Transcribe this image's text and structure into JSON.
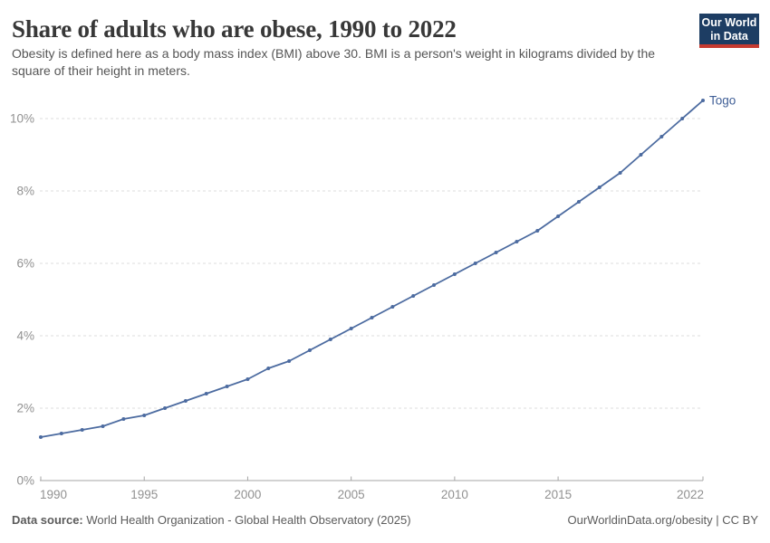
{
  "header": {
    "title": "Share of adults who are obese, 1990 to 2022",
    "subtitle": "Obesity is defined here as a body mass index (BMI) above 30. BMI is a person's weight in kilograms divided by the square of their height in meters.",
    "logo_line1": "Our World",
    "logo_line2": "in Data"
  },
  "chart_data": {
    "type": "line",
    "title": "Share of adults who are obese, 1990 to 2022",
    "xlabel": "",
    "ylabel": "",
    "xlim": [
      1990,
      2022
    ],
    "ylim": [
      0,
      10
    ],
    "grid": "horizontal dashed gridlines at 2% steps",
    "legend": "entity label at end of line",
    "xticks": [
      1990,
      1995,
      2000,
      2005,
      2010,
      2015,
      2022
    ],
    "yticks": [
      0,
      2,
      4,
      6,
      8,
      10
    ],
    "ytick_labels": [
      "0%",
      "2%",
      "4%",
      "6%",
      "8%",
      "10%"
    ],
    "series": [
      {
        "name": "Togo",
        "color": "#4c6ba0",
        "x": [
          1990,
          1991,
          1992,
          1993,
          1994,
          1995,
          1996,
          1997,
          1998,
          1999,
          2000,
          2001,
          2002,
          2003,
          2004,
          2005,
          2006,
          2007,
          2008,
          2009,
          2010,
          2011,
          2012,
          2013,
          2014,
          2015,
          2016,
          2017,
          2018,
          2019,
          2020,
          2021,
          2022
        ],
        "values": [
          1.2,
          1.3,
          1.4,
          1.5,
          1.7,
          1.8,
          2.0,
          2.2,
          2.4,
          2.6,
          2.8,
          3.1,
          3.3,
          3.6,
          3.9,
          4.2,
          4.5,
          4.8,
          5.1,
          5.4,
          5.7,
          6.0,
          6.3,
          6.6,
          6.9,
          7.3,
          7.7,
          8.1,
          8.5,
          9.0,
          9.5,
          10.0,
          10.5
        ]
      }
    ]
  },
  "colors": {
    "series_line": "#4c6ba0",
    "series_label": "#3f5e96",
    "gridline": "#dcdcdc",
    "axis": "#a5a5a5",
    "tick_text": "#919191",
    "logo_bg": "#1d3d63",
    "logo_accent": "#c63b31"
  },
  "footer": {
    "datasource_label": "Data source:",
    "datasource_text": "World Health Organization - Global Health Observatory (2025)",
    "credit": "OurWorldinData.org/obesity | CC BY"
  }
}
